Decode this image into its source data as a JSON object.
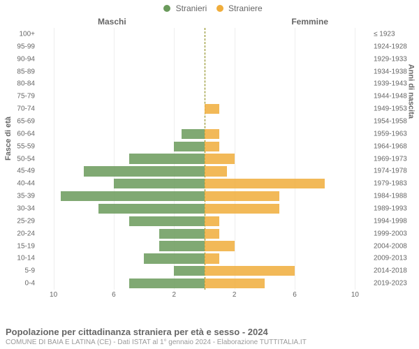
{
  "legend": {
    "male": {
      "label": "Stranieri",
      "color": "#6a9a5b"
    },
    "female": {
      "label": "Straniere",
      "color": "#f0ad3b"
    }
  },
  "headers": {
    "left": "Maschi",
    "right": "Femmine"
  },
  "yaxis_left_title": "Fasce di età",
  "yaxis_right_title": "Anni di nascita",
  "xmax": 11,
  "xticks": [
    10,
    6,
    2,
    2,
    6,
    10
  ],
  "background_color": "#ffffff",
  "grid_color": "#eeeeee",
  "center_axis_color": "#808000",
  "label_fontsize": 10,
  "rows": [
    {
      "age": "100+",
      "birth": "≤ 1923",
      "m": 0,
      "f": 0
    },
    {
      "age": "95-99",
      "birth": "1924-1928",
      "m": 0,
      "f": 0
    },
    {
      "age": "90-94",
      "birth": "1929-1933",
      "m": 0,
      "f": 0
    },
    {
      "age": "85-89",
      "birth": "1934-1938",
      "m": 0,
      "f": 0
    },
    {
      "age": "80-84",
      "birth": "1939-1943",
      "m": 0,
      "f": 0
    },
    {
      "age": "75-79",
      "birth": "1944-1948",
      "m": 0,
      "f": 0
    },
    {
      "age": "70-74",
      "birth": "1949-1953",
      "m": 0,
      "f": 1
    },
    {
      "age": "65-69",
      "birth": "1954-1958",
      "m": 0,
      "f": 0
    },
    {
      "age": "60-64",
      "birth": "1959-1963",
      "m": 1.5,
      "f": 1
    },
    {
      "age": "55-59",
      "birth": "1964-1968",
      "m": 2,
      "f": 1
    },
    {
      "age": "50-54",
      "birth": "1969-1973",
      "m": 5,
      "f": 2
    },
    {
      "age": "45-49",
      "birth": "1974-1978",
      "m": 8,
      "f": 1.5
    },
    {
      "age": "40-44",
      "birth": "1979-1983",
      "m": 6,
      "f": 8
    },
    {
      "age": "35-39",
      "birth": "1984-1988",
      "m": 9.5,
      "f": 5
    },
    {
      "age": "30-34",
      "birth": "1989-1993",
      "m": 7,
      "f": 5
    },
    {
      "age": "25-29",
      "birth": "1994-1998",
      "m": 5,
      "f": 1
    },
    {
      "age": "20-24",
      "birth": "1999-2003",
      "m": 3,
      "f": 1
    },
    {
      "age": "15-19",
      "birth": "2004-2008",
      "m": 3,
      "f": 2
    },
    {
      "age": "10-14",
      "birth": "2009-2013",
      "m": 4,
      "f": 1
    },
    {
      "age": "5-9",
      "birth": "2014-2018",
      "m": 2,
      "f": 6
    },
    {
      "age": "0-4",
      "birth": "2019-2023",
      "m": 5,
      "f": 4
    }
  ],
  "caption": {
    "title": "Popolazione per cittadinanza straniera per età e sesso - 2024",
    "sub": "COMUNE DI BAIA E LATINA (CE) - Dati ISTAT al 1° gennaio 2024 - Elaborazione TUTTITALIA.IT"
  }
}
